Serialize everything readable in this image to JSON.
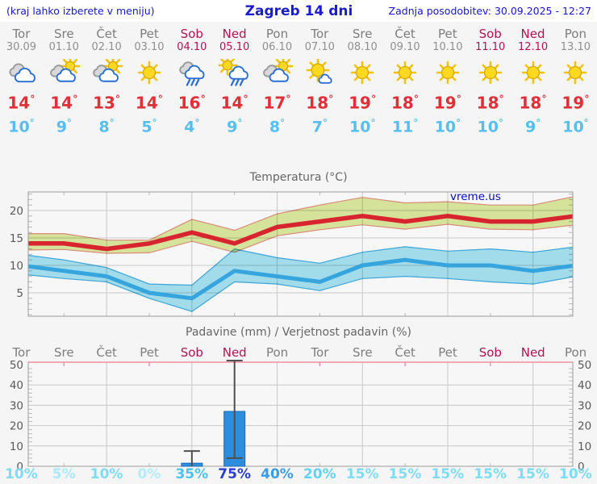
{
  "header": {
    "menu_note": "(kraj lahko izberete v meniju)",
    "title": "Zagreb 14 dni",
    "updated": "Zadnja posodobitev: 30.09.2025 - 12:27"
  },
  "strings": {
    "deg": "°"
  },
  "days": [
    {
      "name": "Tor",
      "date": "30.09",
      "weekend": false,
      "icon": "cloudy",
      "tmax": "14",
      "tmin": "10",
      "pop": "10%",
      "pop_color": "#7edcf5"
    },
    {
      "name": "Sre",
      "date": "01.10",
      "weekend": false,
      "icon": "partly-cloudy",
      "tmax": "14",
      "tmin": "9",
      "pop": "5%",
      "pop_color": "#a8eaf9"
    },
    {
      "name": "Čet",
      "date": "02.10",
      "weekend": false,
      "icon": "partly-cloudy",
      "tmax": "13",
      "tmin": "8",
      "pop": "10%",
      "pop_color": "#7edcf5"
    },
    {
      "name": "Pet",
      "date": "03.10",
      "weekend": false,
      "icon": "sunny",
      "tmax": "14",
      "tmin": "5",
      "pop": "0%",
      "pop_color": "#b4ecf9"
    },
    {
      "name": "Sob",
      "date": "04.10",
      "weekend": true,
      "icon": "rain",
      "tmax": "16",
      "tmin": "4",
      "pop": "35%",
      "pop_color": "#49c3ef"
    },
    {
      "name": "Ned",
      "date": "05.10",
      "weekend": true,
      "icon": "sun-rain",
      "tmax": "14",
      "tmin": "9",
      "pop": "75%",
      "pop_color": "#2a3ed0"
    },
    {
      "name": "Pon",
      "date": "06.10",
      "weekend": false,
      "icon": "partly-cloudy",
      "tmax": "17",
      "tmin": "8",
      "pop": "40%",
      "pop_color": "#3a9ce8"
    },
    {
      "name": "Tor",
      "date": "07.10",
      "weekend": false,
      "icon": "sun-cloud",
      "tmax": "18",
      "tmin": "7",
      "pop": "20%",
      "pop_color": "#62d3f2"
    },
    {
      "name": "Sre",
      "date": "08.10",
      "weekend": false,
      "icon": "sunny",
      "tmax": "19",
      "tmin": "10",
      "pop": "15%",
      "pop_color": "#7edcf5"
    },
    {
      "name": "Čet",
      "date": "09.10",
      "weekend": false,
      "icon": "sunny",
      "tmax": "18",
      "tmin": "11",
      "pop": "15%",
      "pop_color": "#7edcf5"
    },
    {
      "name": "Pet",
      "date": "10.10",
      "weekend": false,
      "icon": "sunny",
      "tmax": "19",
      "tmin": "10",
      "pop": "15%",
      "pop_color": "#7edcf5"
    },
    {
      "name": "Sob",
      "date": "11.10",
      "weekend": true,
      "icon": "sunny",
      "tmax": "18",
      "tmin": "10",
      "pop": "15%",
      "pop_color": "#7edcf5"
    },
    {
      "name": "Ned",
      "date": "12.10",
      "weekend": true,
      "icon": "sunny",
      "tmax": "18",
      "tmin": "9",
      "pop": "15%",
      "pop_color": "#7edcf5"
    },
    {
      "name": "Pon",
      "date": "13.10",
      "weekend": false,
      "icon": "sunny",
      "tmax": "19",
      "tmin": "10",
      "pop": "10%",
      "pop_color": "#7edcf5"
    }
  ],
  "chart_data": [
    {
      "type": "line",
      "title": "Temperatura (°C)",
      "watermark": "vreme.us",
      "x_labels": [
        "Tor 30.09",
        "Sre 01.10",
        "Čet 02.10",
        "Pet 03.10",
        "Sob 04.10",
        "Ned 05.10",
        "Pon 06.10",
        "Tor 07.10",
        "Sre 08.10",
        "Čet 09.10",
        "Pet 10.10",
        "Sob 11.10",
        "Ned 12.10",
        "Pon 13.10"
      ],
      "ylim": [
        0.7,
        23.5
      ],
      "yticks": [
        5,
        10,
        15,
        20
      ],
      "grid": true,
      "legend": "none",
      "series": [
        {
          "name": "max temperature",
          "color": "#d7242e",
          "values": [
            14,
            14,
            13,
            14,
            16,
            14,
            17,
            18,
            19,
            18,
            19,
            18,
            18,
            19
          ],
          "band_high": [
            15.8,
            15.8,
            14.6,
            14.6,
            18.4,
            16.4,
            19.4,
            21.0,
            22.4,
            21.4,
            21.6,
            21.0,
            21.0,
            22.6
          ],
          "band_low": [
            12.8,
            12.9,
            12.2,
            12.3,
            14.4,
            12.4,
            15.4,
            16.5,
            17.4,
            16.6,
            17.5,
            16.6,
            16.5,
            17.4
          ],
          "band_color": "#dcea9e",
          "band_edge": "#e2907d"
        },
        {
          "name": "min temperature",
          "color": "#36a4dd",
          "values": [
            10,
            9,
            8,
            5,
            4,
            9,
            8,
            7,
            10,
            11,
            10,
            10,
            9,
            10
          ],
          "band_high": [
            12.0,
            11.0,
            9.6,
            6.6,
            6.4,
            13.0,
            11.4,
            10.4,
            12.4,
            13.4,
            12.6,
            13.0,
            12.4,
            13.4
          ],
          "band_low": [
            8.4,
            7.6,
            7.0,
            4.0,
            1.6,
            7.0,
            6.6,
            5.4,
            7.6,
            8.0,
            7.6,
            7.0,
            6.6,
            8.0
          ],
          "band_color": "#a7e4f3",
          "band_edge": "#3ea9de"
        }
      ]
    },
    {
      "type": "bar",
      "title": "Padavine (mm) / Verjetnost padavin (%)",
      "categories": [
        "Tor",
        "Sre",
        "Čet",
        "Pet",
        "Sob",
        "Ned",
        "Pon",
        "Tor",
        "Sre",
        "Čet",
        "Pet",
        "Sob",
        "Ned",
        "Pon"
      ],
      "ylim": [
        0,
        51
      ],
      "yticks": [
        0,
        10,
        20,
        30,
        40,
        50
      ],
      "grid": true,
      "bar_color": "#2d8ede",
      "bars": [
        {
          "day_index": 4,
          "value": 1.5,
          "range_low": 0,
          "range_high": 7.5
        },
        {
          "day_index": 5,
          "value": 27,
          "range_low": 4,
          "range_high": 52
        }
      ],
      "probabilities_percent": [
        10,
        5,
        10,
        0,
        35,
        75,
        40,
        20,
        15,
        15,
        15,
        15,
        15,
        10
      ]
    }
  ],
  "colors": {
    "weekend": "#b3124f",
    "weekday": "#7d7d7d",
    "tmax": "#e02f36",
    "tmin": "#57bef0",
    "grid": "#c8c8c8",
    "axis": "#9c9c9c",
    "pink_axis": "#ee8fa4",
    "whisker": "#4f4f4f",
    "header_blue": "#1515dd"
  }
}
